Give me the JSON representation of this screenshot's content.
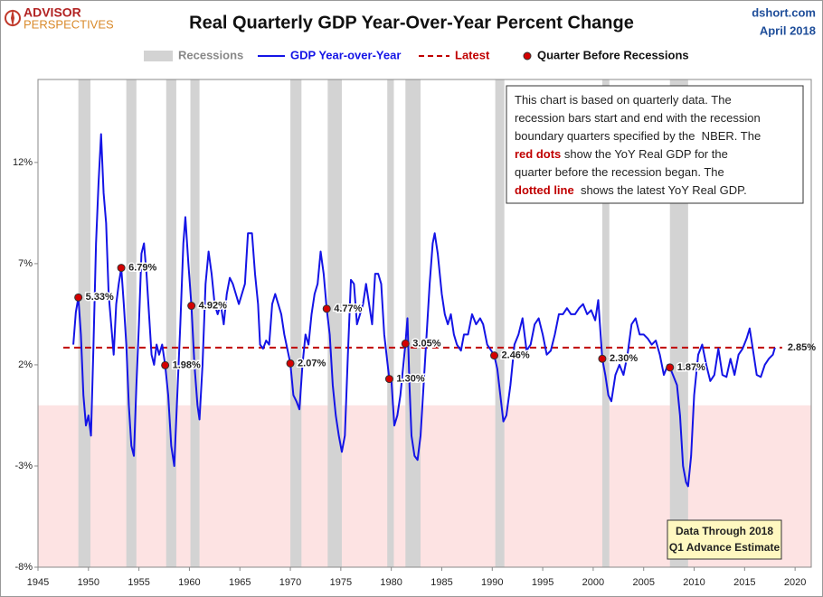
{
  "chart_data": {
    "type": "line",
    "title": "Real Quarterly GDP Year-Over-Year Percent Change",
    "logo": [
      "ADVISOR",
      "PERSPECTIVES"
    ],
    "source": "dshort.com",
    "date": "April 2018",
    "xlim": [
      1945,
      2021.6
    ],
    "ylim": [
      -8,
      16.1
    ],
    "xticks": [
      1945,
      1950,
      1955,
      1960,
      1965,
      1970,
      1975,
      1980,
      1985,
      1990,
      1995,
      2000,
      2005,
      2010,
      2015,
      2020
    ],
    "yticks": [
      {
        "value": -8,
        "label": "-8%"
      },
      {
        "value": -3,
        "label": "-3%"
      },
      {
        "value": 2,
        "label": "2%"
      },
      {
        "value": 7,
        "label": "7%"
      },
      {
        "value": 12,
        "label": "12%"
      }
    ],
    "negative_shading": "#fde3e3",
    "x": [
      1948.5,
      1948.75,
      1949.0,
      1949.25,
      1949.5,
      1949.75,
      1950.0,
      1950.25,
      1950.5,
      1950.75,
      1951.0,
      1951.25,
      1951.5,
      1951.75,
      1952.0,
      1952.25,
      1952.5,
      1952.75,
      1953.0,
      1953.25,
      1953.5,
      1953.75,
      1954.0,
      1954.25,
      1954.5,
      1954.75,
      1955.0,
      1955.25,
      1955.5,
      1955.75,
      1956.0,
      1956.25,
      1956.5,
      1956.75,
      1957.0,
      1957.3,
      1957.6,
      1957.9,
      1958.2,
      1958.5,
      1958.8,
      1959.1,
      1959.4,
      1959.6,
      1959.9,
      1960.2,
      1960.5,
      1960.8,
      1961.0,
      1961.3,
      1961.6,
      1961.9,
      1962.2,
      1962.5,
      1962.8,
      1963.1,
      1963.4,
      1963.7,
      1964.0,
      1964.3,
      1964.6,
      1964.9,
      1965.2,
      1965.5,
      1965.8,
      1966.2,
      1966.5,
      1966.8,
      1967.0,
      1967.3,
      1967.6,
      1967.9,
      1968.2,
      1968.5,
      1968.8,
      1969.1,
      1969.4,
      1970.0,
      1970.3,
      1970.6,
      1970.9,
      1971.2,
      1971.5,
      1971.8,
      1972.1,
      1972.4,
      1972.7,
      1973.0,
      1973.3,
      1973.6,
      1973.9,
      1974.2,
      1974.5,
      1974.8,
      1975.1,
      1975.4,
      1975.7,
      1976.0,
      1976.3,
      1976.6,
      1976.9,
      1977.2,
      1977.5,
      1977.8,
      1978.1,
      1978.4,
      1978.7,
      1979.0,
      1979.3,
      1979.8,
      1980.0,
      1980.3,
      1980.6,
      1980.9,
      1981.4,
      1981.6,
      1981.8,
      1982.0,
      1982.3,
      1982.6,
      1982.9,
      1983.2,
      1983.5,
      1983.8,
      1984.1,
      1984.3,
      1984.6,
      1985.0,
      1985.3,
      1985.6,
      1985.9,
      1986.2,
      1986.5,
      1986.9,
      1987.2,
      1987.6,
      1988.0,
      1988.4,
      1988.8,
      1989.1,
      1989.5,
      1989.9,
      1990.2,
      1990.5,
      1990.8,
      1991.1,
      1991.4,
      1991.8,
      1992.2,
      1992.6,
      1993.0,
      1993.4,
      1993.8,
      1994.2,
      1994.6,
      1995.0,
      1995.4,
      1995.8,
      1996.2,
      1996.6,
      1997.0,
      1997.4,
      1997.8,
      1998.2,
      1998.6,
      1999.0,
      1999.4,
      1999.8,
      2000.2,
      2000.5,
      2000.9,
      2001.2,
      2001.5,
      2001.8,
      2002.2,
      2002.6,
      2003.0,
      2003.4,
      2003.8,
      2004.2,
      2004.6,
      2005.0,
      2005.4,
      2005.8,
      2006.2,
      2006.6,
      2007.0,
      2007.4,
      2007.6,
      2007.9,
      2008.3,
      2008.6,
      2008.9,
      2009.2,
      2009.4,
      2009.7,
      2010.0,
      2010.4,
      2010.8,
      2011.2,
      2011.6,
      2012.0,
      2012.4,
      2012.8,
      2013.2,
      2013.6,
      2014.0,
      2014.4,
      2014.8,
      2015.2,
      2015.5,
      2015.9,
      2016.2,
      2016.6,
      2017.0,
      2017.4,
      2017.8,
      2018.0
    ],
    "series": [
      {
        "name": "GDP Year-over-Year",
        "color": "#1414e6",
        "values": [
          3.0,
          4.6,
          5.33,
          3.5,
          0.5,
          -1.0,
          -0.5,
          -1.5,
          3.0,
          8.0,
          11.0,
          13.4,
          10.5,
          9.0,
          5.5,
          4.0,
          2.5,
          5.0,
          6.0,
          6.79,
          5.0,
          3.0,
          0.0,
          -2.0,
          -2.5,
          1.0,
          4.0,
          7.5,
          8.0,
          6.5,
          4.5,
          2.5,
          2.0,
          3.0,
          2.5,
          3.0,
          1.98,
          0.5,
          -2.0,
          -3.0,
          0.5,
          4.0,
          8.0,
          9.3,
          7.0,
          4.92,
          2.0,
          0.0,
          -0.7,
          2.0,
          6.0,
          7.6,
          6.5,
          5.0,
          4.5,
          5.0,
          4.0,
          5.5,
          6.3,
          6.0,
          5.5,
          5.0,
          5.5,
          6.0,
          8.5,
          8.5,
          6.5,
          5.0,
          3.0,
          2.8,
          3.2,
          3.0,
          5.0,
          5.5,
          5.0,
          4.5,
          3.5,
          2.07,
          0.5,
          0.2,
          -0.2,
          2.0,
          3.5,
          3.0,
          4.5,
          5.5,
          6.0,
          7.6,
          6.5,
          4.77,
          3.5,
          1.0,
          -0.5,
          -1.5,
          -2.3,
          -1.5,
          2.5,
          6.2,
          6.0,
          4.0,
          4.5,
          5.0,
          6.0,
          5.0,
          4.0,
          6.5,
          6.5,
          6.0,
          3.5,
          1.3,
          1.3,
          -1.0,
          -0.5,
          0.5,
          3.05,
          4.3,
          1.0,
          -1.5,
          -2.5,
          -2.7,
          -1.5,
          1.0,
          3.5,
          6.0,
          8.0,
          8.5,
          7.5,
          5.5,
          4.5,
          4.0,
          4.5,
          3.5,
          3.0,
          2.7,
          3.5,
          3.5,
          4.5,
          4.0,
          4.3,
          4.0,
          3.0,
          2.7,
          2.46,
          1.8,
          0.5,
          -0.8,
          -0.5,
          1.0,
          3.0,
          3.5,
          4.3,
          2.7,
          3.0,
          4.0,
          4.3,
          3.5,
          2.5,
          2.7,
          3.5,
          4.5,
          4.5,
          4.8,
          4.5,
          4.5,
          4.8,
          5.0,
          4.5,
          4.7,
          4.2,
          5.2,
          2.3,
          1.5,
          0.5,
          0.2,
          1.5,
          2.0,
          1.5,
          2.5,
          4.0,
          4.3,
          3.5,
          3.5,
          3.3,
          3.0,
          3.2,
          2.5,
          1.5,
          2.0,
          1.87,
          1.5,
          1.0,
          -0.5,
          -3.0,
          -3.8,
          -4.0,
          -2.5,
          0.5,
          2.5,
          3.0,
          2.0,
          1.2,
          1.5,
          2.8,
          1.5,
          1.4,
          2.3,
          1.5,
          2.5,
          2.8,
          3.3,
          3.8,
          2.5,
          1.5,
          1.4,
          2.0,
          2.3,
          2.5,
          2.85
        ]
      }
    ],
    "recessions": {
      "name": "Recessions",
      "color": "#d3d3d3",
      "ranges": [
        [
          1949.0,
          1950.2
        ],
        [
          1953.75,
          1954.75
        ],
        [
          1957.7,
          1958.7
        ],
        [
          1960.1,
          1961.0
        ],
        [
          1970.0,
          1971.1
        ],
        [
          1973.7,
          1975.1
        ],
        [
          1979.6,
          1980.25
        ],
        [
          1981.4,
          1982.9
        ],
        [
          1990.3,
          1991.2
        ],
        [
          2000.9,
          2001.6
        ],
        [
          2007.6,
          2009.4
        ]
      ]
    },
    "latest": {
      "name": "Latest",
      "color": "#c00000",
      "value": 2.85,
      "value_label": "2.85%"
    },
    "markers": {
      "name": "Quarter Before Recessions",
      "color": "#d40000",
      "x": [
        1949.0,
        1953.25,
        1957.6,
        1960.2,
        1970.0,
        1973.6,
        1979.8,
        1981.4,
        1990.2,
        2000.9,
        2007.6
      ],
      "values": [
        5.33,
        6.79,
        1.98,
        4.92,
        2.07,
        4.77,
        1.3,
        3.05,
        2.46,
        2.3,
        1.87
      ],
      "value_labels": [
        "5.33%",
        "6.79%",
        "1.98%",
        "4.92%",
        "2.07%",
        "4.77%",
        "1.30%",
        "3.05%",
        "2.46%",
        "2.30%",
        "1.87%"
      ]
    },
    "note": [
      [
        {
          "text": "This chart is based on quarterly data. The",
          "highlight": false
        }
      ],
      [
        {
          "text": "recession bars start and end with the recession",
          "highlight": false
        }
      ],
      [
        {
          "text": "boundary quarters specified by the  NBER. The",
          "highlight": false
        }
      ],
      [
        {
          "text": "red dots",
          "highlight": true
        },
        {
          "text": " show the YoY Real GDP for the",
          "highlight": false
        }
      ],
      [
        {
          "text": "quarter before the recession began. The",
          "highlight": false
        }
      ],
      [
        {
          "text": "dotted line",
          "highlight": true
        },
        {
          "text": "  shows the latest YoY Real GDP.",
          "highlight": false
        }
      ]
    ],
    "data_note": [
      "Data Through 2018",
      "Q1 Advance Estimate"
    ]
  }
}
